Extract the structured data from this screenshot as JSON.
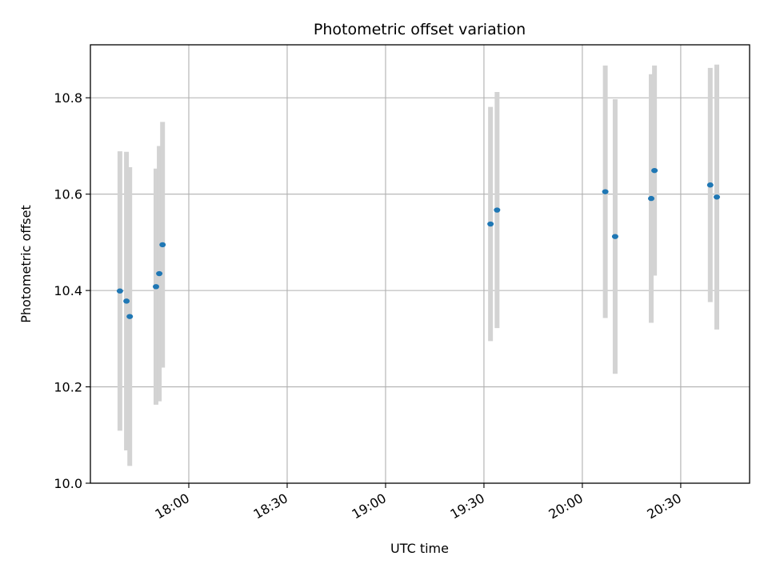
{
  "chart_data": {
    "type": "scatter",
    "title": "Photometric offset variation",
    "xlabel": "UTC time",
    "ylabel": "Photometric offset",
    "grid": true,
    "x_axis": "time",
    "xlim": [
      "17:30",
      "20:51"
    ],
    "ylim": [
      10.0,
      10.91
    ],
    "x_ticks": [
      "18:00",
      "18:30",
      "19:00",
      "19:30",
      "20:00",
      "20:30"
    ],
    "y_ticks": [
      10.0,
      10.2,
      10.4,
      10.6,
      10.8
    ],
    "y_tick_labels": [
      "10.0",
      "10.2",
      "10.4",
      "10.6",
      "10.8"
    ],
    "marker_color": "#1f77b4",
    "errorbar_color": "#d3d3d3",
    "points": [
      {
        "time": "17:39",
        "y": 10.399,
        "yerr": 0.29
      },
      {
        "time": "17:41",
        "y": 10.378,
        "yerr": 0.31
      },
      {
        "time": "17:42",
        "y": 10.346,
        "yerr": 0.31
      },
      {
        "time": "17:50",
        "y": 10.408,
        "yerr": 0.245
      },
      {
        "time": "17:51",
        "y": 10.435,
        "yerr": 0.265
      },
      {
        "time": "17:52",
        "y": 10.495,
        "yerr": 0.255
      },
      {
        "time": "19:32",
        "y": 10.538,
        "yerr": 0.243
      },
      {
        "time": "19:34",
        "y": 10.567,
        "yerr": 0.245
      },
      {
        "time": "20:07",
        "y": 10.605,
        "yerr": 0.262
      },
      {
        "time": "20:10",
        "y": 10.512,
        "yerr": 0.285
      },
      {
        "time": "20:21",
        "y": 10.591,
        "yerr": 0.258
      },
      {
        "time": "20:22",
        "y": 10.649,
        "yerr": 0.218
      },
      {
        "time": "20:39",
        "y": 10.619,
        "yerr": 0.243
      },
      {
        "time": "20:41",
        "y": 10.594,
        "yerr": 0.275
      }
    ]
  }
}
